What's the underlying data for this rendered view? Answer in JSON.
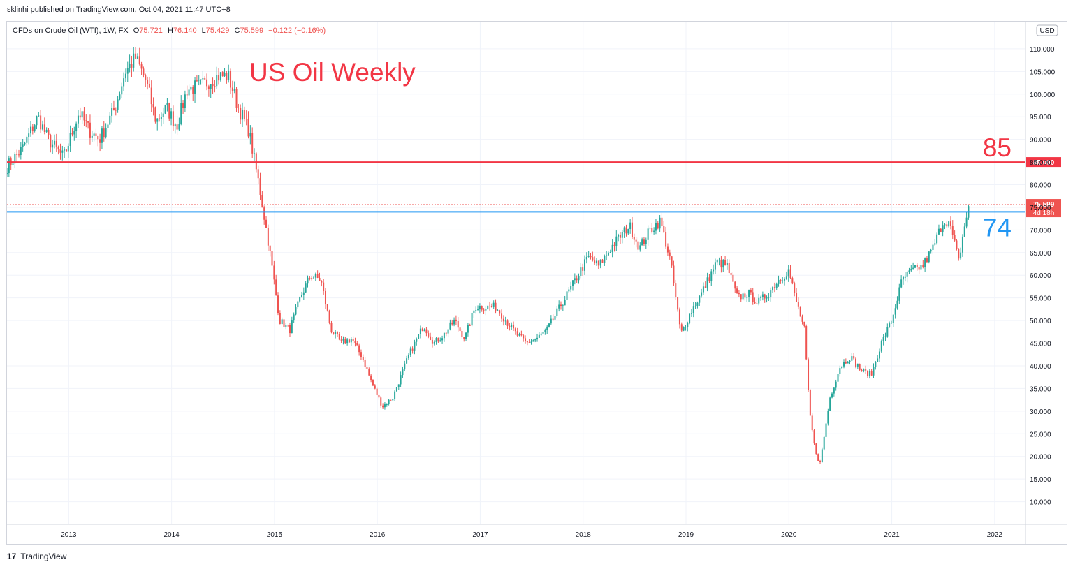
{
  "header": {
    "published": "sklinhi published on TradingView.com, Oct 04, 2021 11:47 UTC+8"
  },
  "legend": {
    "instrument": "CFDs on Crude Oil (WTI), 1W, FX",
    "open_label": "O",
    "open": "75.721",
    "high_label": "H",
    "high": "76.140",
    "low_label": "L",
    "low": "75.429",
    "close_label": "C",
    "close": "75.599",
    "change": "−0.122 (−0.16%)"
  },
  "currency_badge": "USD",
  "footer": {
    "logo_mark": "17",
    "brand": "TradingView"
  },
  "colors": {
    "up": "#26a69a",
    "down": "#ef5350",
    "level_85": "#f23645",
    "level_74": "#2196f3",
    "grid": "#f0f3fa"
  },
  "chart_data": {
    "type": "candlestick",
    "title": "US Oil Weekly",
    "ylim": [
      5,
      116
    ],
    "y_ticks": [
      "110.000",
      "105.000",
      "100.000",
      "95.000",
      "90.000",
      "85.000",
      "80.000",
      "75.000",
      "70.000",
      "65.000",
      "60.000",
      "55.000",
      "50.000",
      "45.000",
      "40.000",
      "35.000",
      "30.000",
      "25.000",
      "20.000",
      "15.000",
      "10.000"
    ],
    "x_ticks": [
      "2013",
      "2014",
      "2015",
      "2016",
      "2017",
      "2018",
      "2019",
      "2020",
      "2021",
      "2022"
    ],
    "horizontal_levels": [
      {
        "price": 85,
        "label": "85",
        "tag": "85.000",
        "color": "#f23645"
      },
      {
        "price": 74,
        "label": "74",
        "tag": "74.000",
        "color": "#2196f3"
      }
    ],
    "last_price": {
      "value": 75.599,
      "tag": "75.599",
      "countdown": "4d 18h"
    },
    "closes_path": [
      [
        "2012.40",
        84
      ],
      [
        "2012.55",
        88
      ],
      [
        "2012.70",
        95
      ],
      [
        "2012.80",
        90
      ],
      [
        "2012.95",
        86
      ],
      [
        "2013.10",
        96
      ],
      [
        "2013.20",
        92
      ],
      [
        "2013.30",
        90
      ],
      [
        "2013.45",
        97
      ],
      [
        "2013.55",
        105
      ],
      [
        "2013.65",
        108
      ],
      [
        "2013.75",
        103
      ],
      [
        "2013.85",
        94
      ],
      [
        "2013.95",
        97
      ],
      [
        "2014.05",
        93
      ],
      [
        "2014.15",
        101
      ],
      [
        "2014.30",
        102
      ],
      [
        "2014.45",
        104
      ],
      [
        "2014.55",
        104
      ],
      [
        "2014.65",
        97
      ],
      [
        "2014.75",
        92
      ],
      [
        "2014.85",
        80
      ],
      [
        "2014.95",
        66
      ],
      [
        "2015.05",
        50
      ],
      [
        "2015.15",
        48
      ],
      [
        "2015.25",
        55
      ],
      [
        "2015.35",
        60
      ],
      [
        "2015.45",
        59
      ],
      [
        "2015.55",
        48
      ],
      [
        "2015.65",
        45
      ],
      [
        "2015.75",
        46
      ],
      [
        "2015.85",
        42
      ],
      [
        "2015.95",
        36
      ],
      [
        "2016.05",
        31
      ],
      [
        "2016.15",
        33
      ],
      [
        "2016.30",
        42
      ],
      [
        "2016.45",
        49
      ],
      [
        "2016.55",
        45
      ],
      [
        "2016.65",
        47
      ],
      [
        "2016.75",
        50
      ],
      [
        "2016.85",
        46
      ],
      [
        "2016.95",
        53
      ],
      [
        "2017.05",
        53
      ],
      [
        "2017.15",
        53
      ],
      [
        "2017.25",
        50
      ],
      [
        "2017.35",
        47
      ],
      [
        "2017.45",
        45
      ],
      [
        "2017.55",
        46
      ],
      [
        "2017.65",
        48
      ],
      [
        "2017.75",
        52
      ],
      [
        "2017.85",
        56
      ],
      [
        "2017.95",
        60
      ],
      [
        "2018.05",
        64
      ],
      [
        "2018.15",
        62
      ],
      [
        "2018.30",
        67
      ],
      [
        "2018.45",
        71
      ],
      [
        "2018.55",
        66
      ],
      [
        "2018.65",
        70
      ],
      [
        "2018.75",
        72
      ],
      [
        "2018.85",
        63
      ],
      [
        "2018.95",
        47
      ],
      [
        "2019.05",
        52
      ],
      [
        "2019.15",
        56
      ],
      [
        "2019.30",
        63
      ],
      [
        "2019.40",
        62
      ],
      [
        "2019.50",
        55
      ],
      [
        "2019.60",
        56
      ],
      [
        "2019.70",
        54
      ],
      [
        "2019.80",
        56
      ],
      [
        "2019.90",
        59
      ],
      [
        "2020.00",
        61
      ],
      [
        "2020.05",
        56
      ],
      [
        "2020.15",
        48
      ],
      [
        "2020.20",
        30
      ],
      [
        "2020.25",
        22
      ],
      [
        "2020.30",
        18
      ],
      [
        "2020.40",
        33
      ],
      [
        "2020.50",
        40
      ],
      [
        "2020.60",
        42
      ],
      [
        "2020.70",
        39
      ],
      [
        "2020.80",
        38
      ],
      [
        "2020.90",
        45
      ],
      [
        "2021.00",
        50
      ],
      [
        "2021.10",
        59
      ],
      [
        "2021.20",
        61
      ],
      [
        "2021.30",
        62
      ],
      [
        "2021.40",
        66
      ],
      [
        "2021.50",
        72
      ],
      [
        "2021.55",
        72
      ],
      [
        "2021.60",
        68
      ],
      [
        "2021.65",
        63
      ],
      [
        "2021.70",
        70
      ],
      [
        "2021.75",
        75.6
      ]
    ]
  }
}
